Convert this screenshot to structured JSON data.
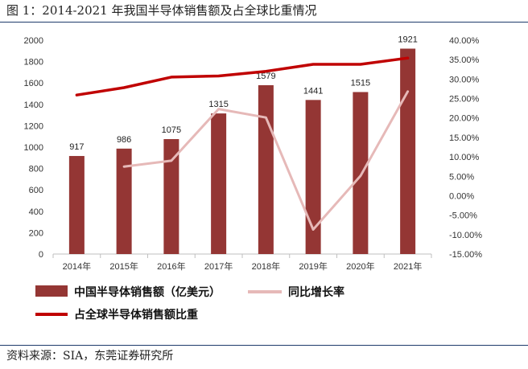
{
  "figure": {
    "title": "图 1：2014-2021 年我国半导体销售额及占全球比重情况",
    "source": "资料来源：SIA，东莞证券研究所"
  },
  "chart_data": {
    "type": "bar",
    "categories": [
      "2014年",
      "2015年",
      "2016年",
      "2017年",
      "2018年",
      "2019年",
      "2020年",
      "2021年"
    ],
    "series": [
      {
        "name": "中国半导体销售额（亿美元）",
        "kind": "bar",
        "axis": "left",
        "color": "#943634",
        "values": [
          917,
          986,
          1075,
          1315,
          1579,
          1441,
          1515,
          1921
        ],
        "data_labels": [
          "917",
          "986",
          "1075",
          "1315",
          "1579",
          "1441",
          "1515",
          "1921"
        ]
      },
      {
        "name": "同比增长率",
        "kind": "line",
        "axis": "right",
        "color": "#e6b9b8",
        "values": [
          null,
          7.5,
          9.0,
          22.3,
          20.1,
          -8.7,
          5.1,
          26.8
        ]
      },
      {
        "name": "占全球半导体销售额比重",
        "kind": "line",
        "axis": "right",
        "color": "#c00000",
        "values": [
          25.9,
          27.8,
          30.5,
          30.8,
          32.0,
          33.8,
          33.8,
          35.4
        ]
      }
    ],
    "left_axis": {
      "ylim": [
        0,
        2000
      ],
      "ticks": [
        0,
        200,
        400,
        600,
        800,
        1000,
        1200,
        1400,
        1600,
        1800,
        2000
      ],
      "tick_labels": [
        "0",
        "200",
        "400",
        "600",
        "800",
        "1000",
        "1200",
        "1400",
        "1600",
        "1800",
        "2000"
      ]
    },
    "right_axis": {
      "ylim": [
        -15,
        40
      ],
      "ticks": [
        -15,
        -10,
        -5,
        0,
        5,
        10,
        15,
        20,
        25,
        30,
        35,
        40
      ],
      "tick_labels": [
        "-15.00%",
        "-10.00%",
        "-5.00%",
        "0.00%",
        "5.00%",
        "10.00%",
        "15.00%",
        "20.00%",
        "25.00%",
        "30.00%",
        "35.00%",
        "40.00%"
      ]
    },
    "grid": false,
    "legend_placement": "bottom"
  }
}
